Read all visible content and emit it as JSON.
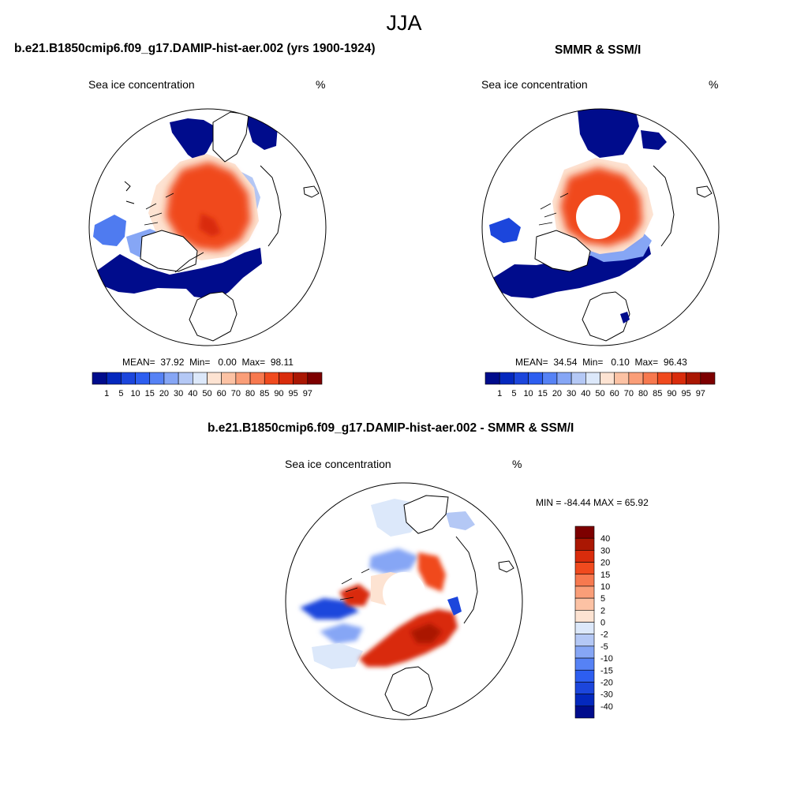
{
  "title": "JJA",
  "panels": [
    {
      "id": "model",
      "title": "b.e21.B1850cmip6.f09_g17.DAMIP-hist-aer.002 (yrs 1900-1924)",
      "variable": "Sea ice concentration",
      "units": "%",
      "stats": {
        "mean_label": "MEAN=",
        "mean": "37.92",
        "min_label": "Min=",
        "min": "0.00",
        "max_label": "Max=",
        "max": "98.11"
      },
      "has_pole_hole": false
    },
    {
      "id": "obs",
      "title": "SMMR & SSM/I",
      "variable": "Sea ice concentration",
      "units": "%",
      "stats": {
        "mean_label": "MEAN=",
        "mean": "34.54",
        "min_label": "Min=",
        "min": "0.10",
        "max_label": "Max=",
        "max": "96.43"
      },
      "has_pole_hole": true
    },
    {
      "id": "diff",
      "title": "b.e21.B1850cmip6.f09_g17.DAMIP-hist-aer.002 - SMMR & SSM/I",
      "variable": "Sea ice concentration",
      "units": "%",
      "minmax_text": "MIN = -84.44 MAX =  65.92",
      "has_pole_hole": true
    }
  ],
  "colorbar_abs": {
    "labels": [
      "1",
      "5",
      "10",
      "15",
      "20",
      "30",
      "40",
      "50",
      "60",
      "70",
      "80",
      "85",
      "90",
      "95",
      "97"
    ],
    "colors": [
      "#000c8c",
      "#0428be",
      "#1c46dc",
      "#2d5ef0",
      "#5682f5",
      "#86a6f5",
      "#b4c8f5",
      "#dce8fa",
      "#fde3d2",
      "#fcc2a4",
      "#fa9e78",
      "#f7794f",
      "#f04a1e",
      "#d92c0c",
      "#aa1703",
      "#7d0000"
    ]
  },
  "colorbar_diff": {
    "labels": [
      "40",
      "30",
      "20",
      "15",
      "10",
      "5",
      "2",
      "0",
      "-2",
      "-5",
      "-10",
      "-15",
      "-20",
      "-30",
      "-40"
    ],
    "colors": [
      "#7d0000",
      "#aa1703",
      "#d92c0c",
      "#f04a1e",
      "#f7794f",
      "#fa9e78",
      "#fcc2a4",
      "#fde3d2",
      "#dce8fa",
      "#b4c8f5",
      "#86a6f5",
      "#5682f5",
      "#2d5ef0",
      "#1c46dc",
      "#0428be",
      "#000c8c"
    ]
  }
}
